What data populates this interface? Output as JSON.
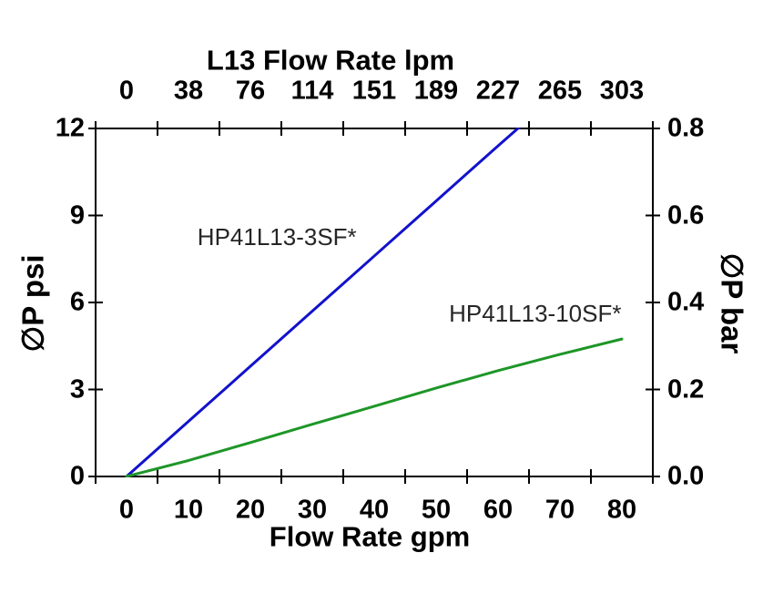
{
  "chart_data": {
    "type": "line",
    "title": "L13 Flow Rate lpm",
    "xlabel": "Flow Rate gpm",
    "ylabel_left": "∅P psi",
    "ylabel_right": "∅P bar",
    "grid": false,
    "legend": "inline-labels",
    "axis_color": "#000000",
    "x_bottom_ticks": [
      "0",
      "10",
      "20",
      "30",
      "40",
      "50",
      "60",
      "70",
      "80"
    ],
    "x_top_ticks": [
      "0",
      "38",
      "76",
      "114",
      "151",
      "189",
      "227",
      "265",
      "303"
    ],
    "y_left_ticks": [
      "12",
      "9",
      "6",
      "3",
      "0"
    ],
    "y_right_ticks": [
      "0.8",
      "0.6",
      "0.4",
      "0.2",
      "0.0"
    ],
    "x_range_gpm": [
      0,
      80
    ],
    "y_range_psi": [
      0,
      12
    ],
    "y_range_bar": [
      0,
      0.8
    ],
    "series": [
      {
        "name": "HP41L13-3SF*",
        "color": "#1212CC",
        "x_gpm": [
          0,
          10,
          20,
          30,
          40,
          50,
          60,
          63.2
        ],
        "y_psi": [
          0,
          1.9,
          3.8,
          5.7,
          7.6,
          9.5,
          11.4,
          12.0
        ],
        "label_gpm": 24.3,
        "label_psi": 8.26
      },
      {
        "name": "HP41L13-10SF*",
        "color": "#1E9628",
        "x_gpm": [
          0,
          10,
          20,
          30,
          40,
          50,
          60,
          70,
          80
        ],
        "y_psi": [
          0,
          0.55,
          1.17,
          1.8,
          2.42,
          3.05,
          3.65,
          4.21,
          4.74
        ],
        "label_gpm": 66.0,
        "label_psi": 5.62
      }
    ]
  }
}
